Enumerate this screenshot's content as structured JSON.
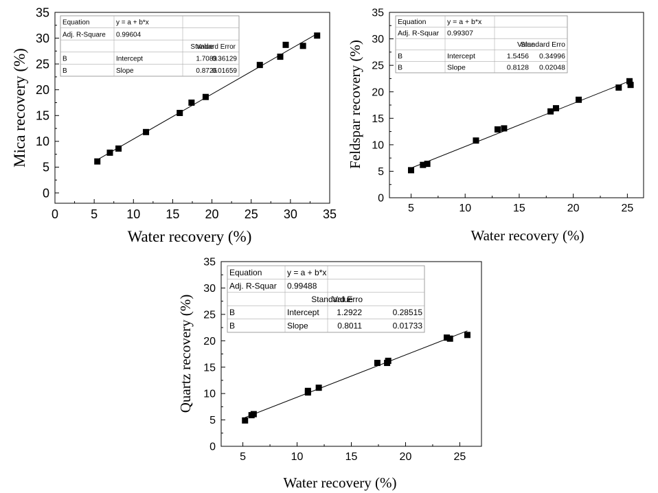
{
  "chart_data": [
    {
      "type": "scatter",
      "title": "",
      "xlabel": "Water recovery (%)",
      "ylabel": "Mica recovery (%)",
      "xlim": [
        0,
        35
      ],
      "ylim": [
        -2,
        35
      ],
      "x_ticks": [
        "0",
        "5",
        "10",
        "15",
        "20",
        "25",
        "30",
        "35"
      ],
      "y_ticks": [
        "0",
        "5",
        "10",
        "15",
        "20",
        "25",
        "30",
        "35"
      ],
      "grid": false,
      "series": [
        {
          "x": [
            5.4,
            7.0,
            8.1,
            11.6,
            15.9,
            17.4,
            19.2,
            26.1,
            28.7,
            29.4,
            31.6,
            33.4
          ],
          "y": [
            6.1,
            7.8,
            8.6,
            11.8,
            15.5,
            17.5,
            18.6,
            24.8,
            26.4,
            28.7,
            28.5,
            30.5
          ]
        }
      ],
      "fit": {
        "intercept": 1.7089,
        "slope": 0.8726,
        "x_range": [
          5.4,
          33.4
        ]
      },
      "stats_table": [
        [
          "Equation",
          "y = a + b*x",
          ""
        ],
        [
          "Adj. R-Square",
          "0.99604",
          ""
        ],
        [
          "",
          "Value",
          "Standard Error"
        ],
        [
          "B",
          "Intercept",
          "1.7089",
          "0.36129"
        ],
        [
          "B",
          "Slope",
          "0.8726",
          "0.01659"
        ]
      ]
    },
    {
      "type": "scatter",
      "title": "",
      "xlabel": "Water recovery (%)",
      "ylabel": "Feldspar recovery (%)",
      "xlim": [
        3,
        26.5
      ],
      "ylim": [
        0,
        35
      ],
      "x_ticks": [
        "5",
        "10",
        "15",
        "20",
        "25"
      ],
      "y_ticks": [
        "0",
        "5",
        "10",
        "15",
        "20",
        "25",
        "30",
        "35"
      ],
      "grid": false,
      "series": [
        {
          "x": [
            5.0,
            6.1,
            6.5,
            11.0,
            13.0,
            13.6,
            17.9,
            18.4,
            20.5,
            24.2,
            25.2,
            25.3
          ],
          "y": [
            5.2,
            6.2,
            6.4,
            10.8,
            12.9,
            13.1,
            16.3,
            16.9,
            18.5,
            20.8,
            22.0,
            21.3
          ]
        }
      ],
      "fit": {
        "intercept": 1.5456,
        "slope": 0.8128,
        "x_range": [
          5.0,
          25.3
        ]
      },
      "stats_table": [
        [
          "Equation",
          "y = a + b*x",
          ""
        ],
        [
          "Adj. R-Squar",
          "0.99307",
          ""
        ],
        [
          "",
          "Value",
          "Standard Erro"
        ],
        [
          "B",
          "Intercept",
          "1.5456",
          "0.34996"
        ],
        [
          "B",
          "Slope",
          "0.8128",
          "0.02048"
        ]
      ]
    },
    {
      "type": "scatter",
      "title": "",
      "xlabel": "Water recovery (%)",
      "ylabel": "Quartz recovery (%)",
      "xlim": [
        3,
        27
      ],
      "ylim": [
        0,
        35
      ],
      "x_ticks": [
        "5",
        "10",
        "15",
        "20",
        "25"
      ],
      "y_ticks": [
        "0",
        "5",
        "10",
        "15",
        "20",
        "25",
        "30",
        "35"
      ],
      "grid": false,
      "series": [
        {
          "x": [
            5.2,
            5.8,
            6.0,
            11.0,
            11.0,
            12.0,
            17.4,
            18.3,
            18.4,
            23.8,
            24.1,
            25.7
          ],
          "y": [
            4.9,
            5.9,
            6.1,
            10.2,
            10.5,
            11.1,
            15.8,
            15.8,
            16.2,
            20.6,
            20.4,
            21.1
          ]
        }
      ],
      "fit": {
        "intercept": 1.2922,
        "slope": 0.8011,
        "x_range": [
          5.2,
          25.7
        ]
      },
      "stats_table": [
        [
          "Equation",
          "y = a + b*x",
          ""
        ],
        [
          "Adj. R-Squar",
          "0.99488",
          ""
        ],
        [
          "",
          "Value",
          "Standard Erro"
        ],
        [
          "B",
          "Intercept",
          "1.2922",
          "0.28515"
        ],
        [
          "B",
          "Slope",
          "0.8011",
          "0.01733"
        ]
      ]
    }
  ]
}
